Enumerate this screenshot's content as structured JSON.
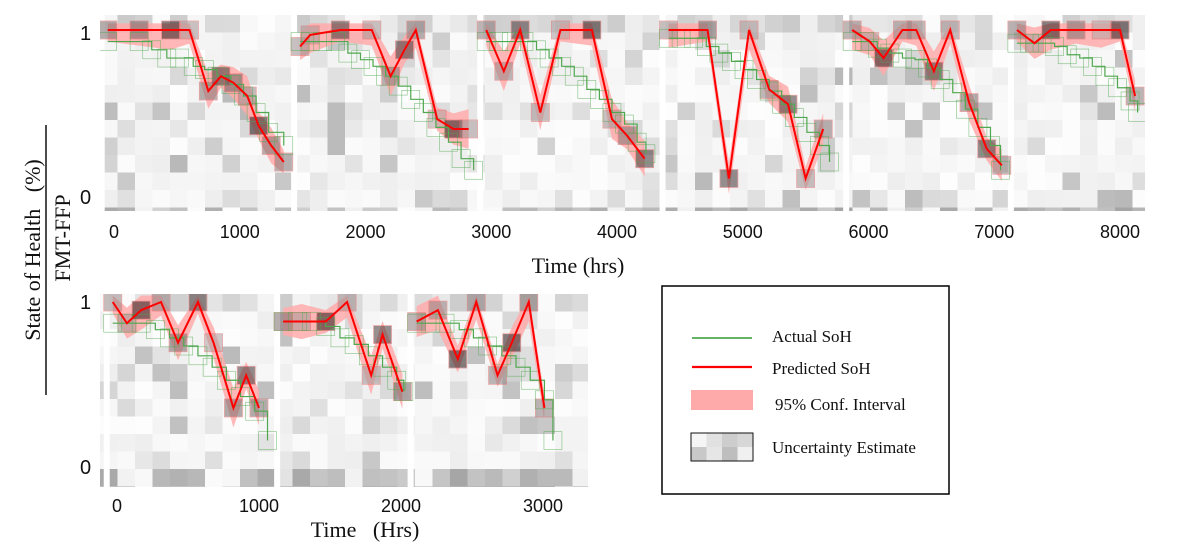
{
  "figure": {
    "ylabel_line1": "State of Health   (%)",
    "ylabel_line2": "FMT-FFP",
    "colors": {
      "actual": "#4fa84f",
      "predicted": "#ff0000",
      "ci": "#ffaaaa",
      "cell_outline": "#e06464",
      "gray_dark": "#222222"
    }
  },
  "legend": {
    "actual": "Actual SoH",
    "predicted": "Predicted SoH",
    "ci": "95% Conf. Interval",
    "uncertainty": "Uncertainty Estimate"
  },
  "chart_data": [
    {
      "type": "line",
      "xlabel": "Time (hrs)",
      "ylabel": "",
      "xlim": [
        -100,
        8250
      ],
      "ylim": [
        0,
        1
      ],
      "ytick_labels": [
        "0",
        "1"
      ],
      "xticks": [
        0,
        1000,
        2000,
        3000,
        4000,
        5000,
        6000,
        7000,
        8000
      ],
      "grid": false,
      "segments": [
        {
          "actual": {
            "x": [
              -50,
              200,
              300,
              420,
              520,
              630,
              720,
              820,
              930,
              1030,
              1130,
              1230,
              1350
            ],
            "y": [
              0.93,
              0.93,
              0.88,
              0.83,
              0.83,
              0.78,
              0.76,
              0.72,
              0.67,
              0.6,
              0.5,
              0.38,
              0.3
            ]
          },
          "predicted": {
            "x": [
              -50,
              200,
              450,
              600,
              750,
              850,
              950,
              1060,
              1150,
              1250,
              1350
            ],
            "y": [
              1.0,
              1.0,
              1.0,
              1.0,
              0.63,
              0.72,
              0.68,
              0.6,
              0.42,
              0.3,
              0.2
            ]
          }
        },
        {
          "actual": {
            "x": [
              1480,
              1560,
              1660,
              1760,
              1860,
              1960,
              2060,
              2160,
              2260,
              2360,
              2460,
              2560,
              2660,
              2760,
              2860
            ],
            "y": [
              0.93,
              0.93,
              0.93,
              0.93,
              0.86,
              0.82,
              0.78,
              0.72,
              0.66,
              0.58,
              0.5,
              0.41,
              0.32,
              0.22,
              0.15
            ]
          },
          "predicted": {
            "x": [
              1480,
              1560,
              1800,
              2050,
              2200,
              2310,
              2400,
              2570,
              2700,
              2820
            ],
            "y": [
              0.9,
              0.97,
              1.0,
              1.0,
              0.72,
              0.88,
              1.0,
              0.46,
              0.4,
              0.4
            ]
          }
        },
        {
          "actual": {
            "x": [
              2960,
              3060,
              3160,
              3260,
              3360,
              3460,
              3560,
              3660,
              3760,
              3860,
              3960,
              4060,
              4160,
              4230
            ],
            "y": [
              0.93,
              0.93,
              0.93,
              0.93,
              0.88,
              0.83,
              0.78,
              0.72,
              0.64,
              0.58,
              0.5,
              0.43,
              0.32,
              0.25
            ]
          },
          "predicted": {
            "x": [
              2960,
              3100,
              3230,
              3390,
              3550,
              3800,
              3960,
              4080,
              4220
            ],
            "y": [
              1.0,
              0.75,
              1.0,
              0.5,
              1.0,
              1.0,
              0.46,
              0.36,
              0.22
            ]
          }
        },
        {
          "actual": {
            "x": [
              4410,
              4510,
              4610,
              4710,
              4810,
              4910,
              5010,
              5110,
              5210,
              5310,
              5410,
              5510,
              5610,
              5690
            ],
            "y": [
              0.95,
              0.95,
              0.95,
              0.9,
              0.86,
              0.81,
              0.76,
              0.7,
              0.63,
              0.55,
              0.47,
              0.38,
              0.3,
              0.2
            ]
          },
          "predicted": {
            "x": [
              4410,
              4720,
              4890,
              5050,
              5210,
              5360,
              5500,
              5640
            ],
            "y": [
              1.0,
              1.0,
              0.1,
              1.0,
              0.64,
              0.55,
              0.1,
              0.4
            ]
          }
        },
        {
          "actual": {
            "x": [
              5870,
              5970,
              6070,
              6170,
              6270,
              6370,
              6470,
              6570,
              6670,
              6770,
              6870,
              6970,
              7050
            ],
            "y": [
              0.93,
              0.93,
              0.89,
              0.86,
              0.83,
              0.82,
              0.77,
              0.7,
              0.62,
              0.52,
              0.41,
              0.3,
              0.15
            ]
          },
          "predicted": {
            "x": [
              5870,
              6010,
              6120,
              6270,
              6380,
              6520,
              6650,
              6800,
              6940,
              7060
            ],
            "y": [
              1.0,
              0.93,
              0.83,
              1.0,
              1.0,
              0.75,
              1.0,
              0.56,
              0.28,
              0.18
            ]
          }
        },
        {
          "actual": {
            "x": [
              7180,
              7280,
              7380,
              7480,
              7580,
              7680,
              7780,
              7880,
              7980,
              8080,
              8140
            ],
            "y": [
              0.92,
              0.92,
              0.92,
              0.9,
              0.85,
              0.83,
              0.78,
              0.72,
              0.65,
              0.57,
              0.5
            ]
          },
          "predicted": {
            "x": [
              7180,
              7320,
              7450,
              7650,
              7850,
              8000,
              8120
            ],
            "y": [
              1.0,
              0.92,
              1.0,
              1.0,
              1.0,
              1.0,
              0.6
            ]
          }
        }
      ]
    },
    {
      "type": "line",
      "xlabel": "Time   (Hrs)",
      "ylabel": "",
      "xlim": [
        -100,
        3200
      ],
      "ylim": [
        0,
        1
      ],
      "ytick_labels": [
        "0",
        "1"
      ],
      "xticks": [
        0,
        1000,
        2000,
        3000
      ],
      "grid": false,
      "segments": [
        {
          "actual": {
            "x": [
              -30,
              70,
              170,
              270,
              370,
              470,
              570,
              670,
              770,
              870,
              970,
              1060
            ],
            "y": [
              0.87,
              0.87,
              0.87,
              0.83,
              0.78,
              0.73,
              0.67,
              0.6,
              0.52,
              0.42,
              0.33,
              0.15
            ]
          },
          "predicted": {
            "x": [
              -30,
              70,
              170,
              310,
              430,
              570,
              680,
              820,
              910,
              1000
            ],
            "y": [
              1.0,
              0.87,
              0.95,
              1.0,
              0.75,
              1.0,
              0.75,
              0.35,
              0.55,
              0.35
            ]
          }
        },
        {
          "actual": {
            "x": [
              1170,
              1270,
              1370,
              1470,
              1570,
              1670,
              1770,
              1870,
              1970,
              2020
            ],
            "y": [
              0.88,
              0.88,
              0.88,
              0.85,
              0.78,
              0.74,
              0.67,
              0.6,
              0.52,
              0.45
            ]
          },
          "predicted": {
            "x": [
              1170,
              1300,
              1470,
              1620,
              1790,
              1870,
              2010
            ],
            "y": [
              0.88,
              0.88,
              0.88,
              1.0,
              0.55,
              0.8,
              0.45
            ]
          }
        },
        {
          "actual": {
            "x": [
              2110,
              2210,
              2310,
              2410,
              2510,
              2610,
              2710,
              2810,
              2910,
              3010,
              3070
            ],
            "y": [
              0.87,
              0.87,
              0.87,
              0.83,
              0.78,
              0.73,
              0.67,
              0.6,
              0.52,
              0.4,
              0.15
            ]
          },
          "predicted": {
            "x": [
              2110,
              2260,
              2400,
              2530,
              2680,
              2780,
              2900,
              3010
            ],
            "y": [
              0.88,
              0.95,
              0.65,
              1.0,
              0.55,
              0.75,
              1.0,
              0.35
            ]
          }
        }
      ]
    }
  ]
}
